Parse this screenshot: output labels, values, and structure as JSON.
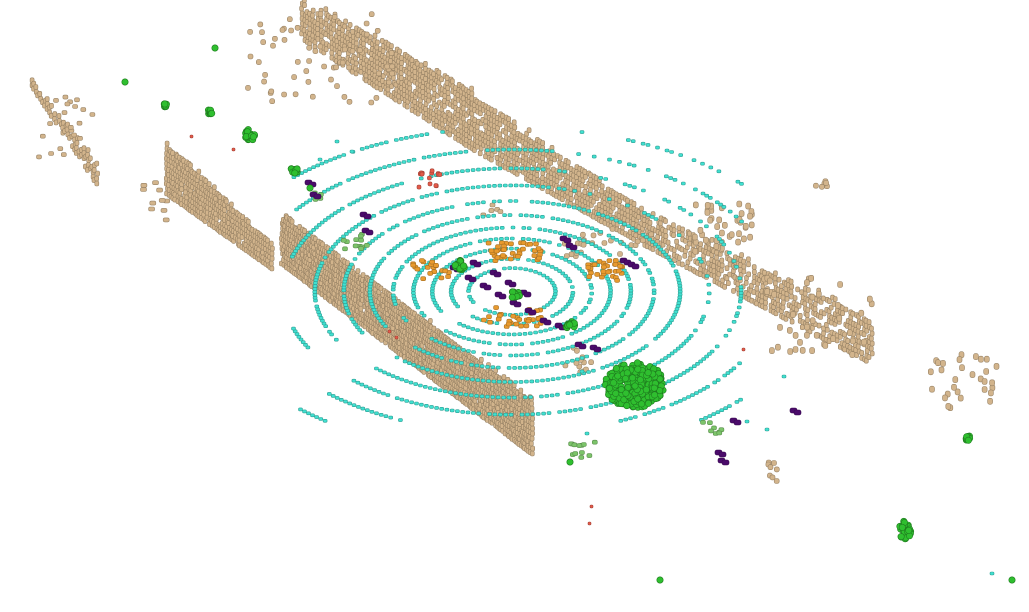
{
  "scene": {
    "type": "lidar-semantic-voxel-point-cloud",
    "background": "#ffffff",
    "classes": [
      {
        "name": "building",
        "color": "#d2b48c"
      },
      {
        "name": "road",
        "color": "#40e0d0"
      },
      {
        "name": "vegetation",
        "color": "#2fbf2f"
      },
      {
        "name": "vehicle",
        "color": "#4b0b6b"
      },
      {
        "name": "sidewalk",
        "color": "#e89a2e"
      },
      {
        "name": "pole",
        "color": "#e45a4a"
      },
      {
        "name": "terrain",
        "color": "#7cc46a"
      }
    ]
  }
}
